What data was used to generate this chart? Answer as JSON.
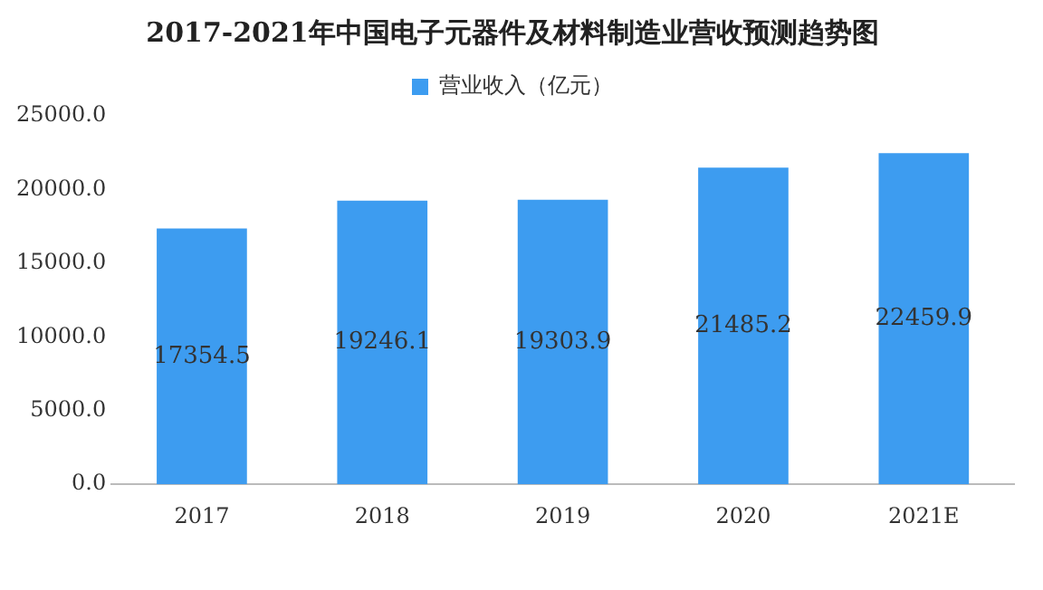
{
  "chart_data": {
    "type": "bar",
    "title": "2017-2021年中国电子元器件及材料制造业营收预测趋势图",
    "categories": [
      "2017",
      "2018",
      "2019",
      "2020",
      "2021E"
    ],
    "series": [
      {
        "name": "营业收入（亿元）",
        "color": "#3d9cf0",
        "values": [
          17354.5,
          19246.1,
          19303.9,
          21485.2,
          22459.9
        ]
      }
    ],
    "ylim": [
      0,
      25000
    ],
    "yticks": [
      {
        "value": 0,
        "label": "0.0"
      },
      {
        "value": 5000,
        "label": "5000.0"
      },
      {
        "value": 10000,
        "label": "10000.0"
      },
      {
        "value": 15000,
        "label": "15000.0"
      },
      {
        "value": 20000,
        "label": "20000.0"
      },
      {
        "value": 25000,
        "label": "25000.0"
      }
    ],
    "grid": false,
    "legend": "top",
    "data_labels": true
  }
}
